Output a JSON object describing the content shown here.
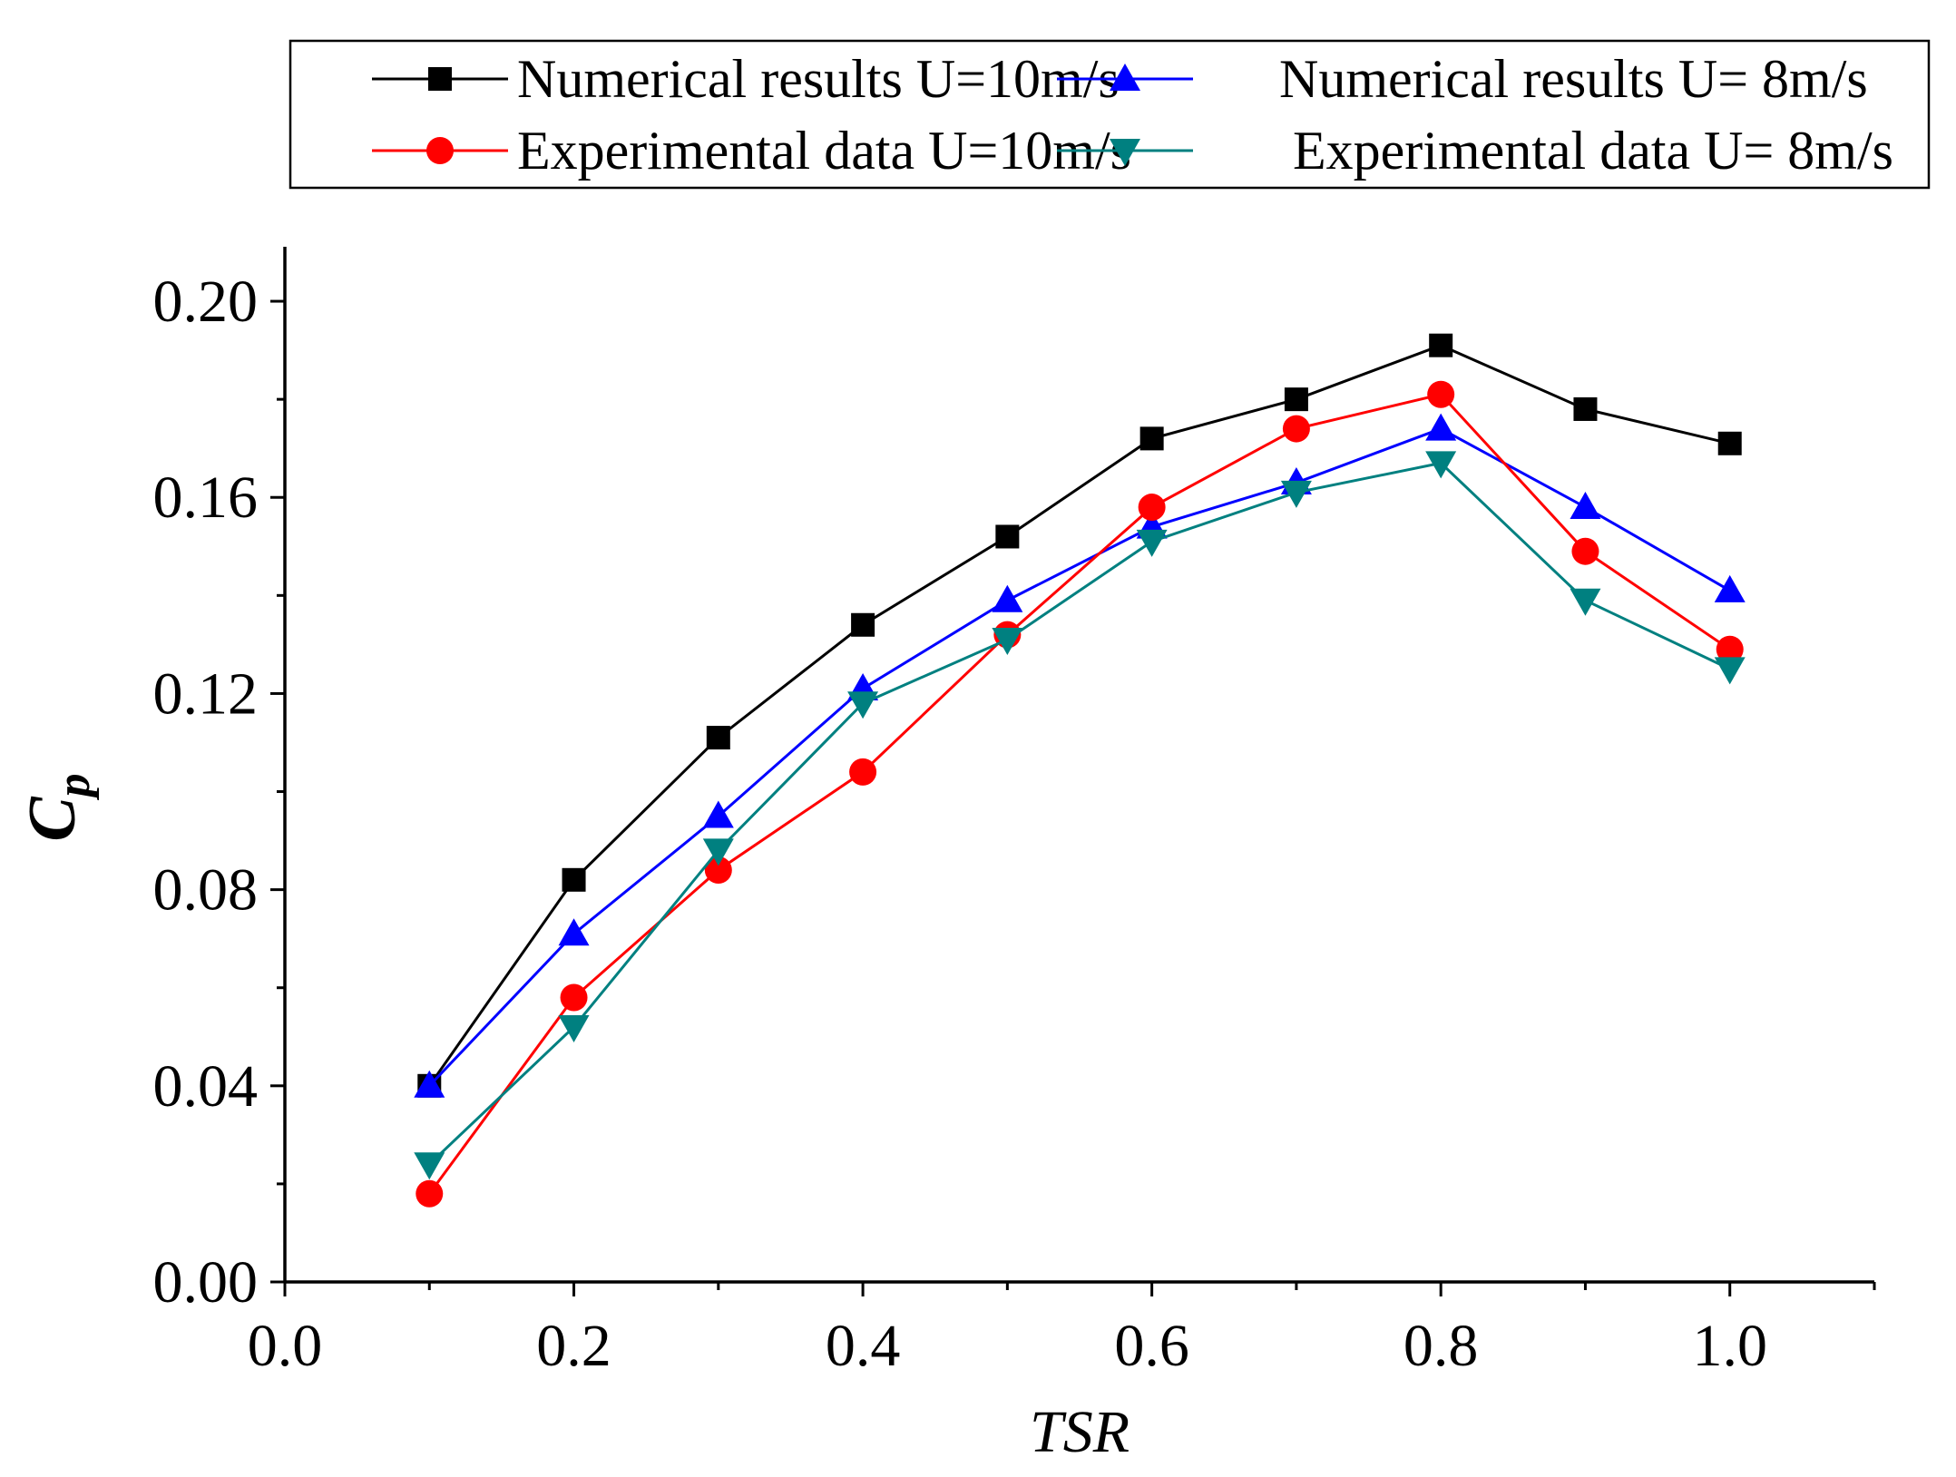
{
  "chart_data": {
    "type": "line",
    "title": "",
    "xlabel": "TSR",
    "ylabel": "C",
    "ylabel_subscript": "p",
    "xlim": [
      0.0,
      1.1
    ],
    "ylim": [
      0.0,
      0.21
    ],
    "xticks": [
      0.0,
      0.2,
      0.4,
      0.6,
      0.8,
      1.0
    ],
    "xtick_labels": [
      "0.0",
      "0.2",
      "0.4",
      "0.6",
      "0.8",
      "1.0"
    ],
    "yticks": [
      0.0,
      0.04,
      0.08,
      0.12,
      0.16,
      0.2
    ],
    "ytick_labels": [
      "0.00",
      "0.04",
      "0.08",
      "0.12",
      "0.16",
      "0.20"
    ],
    "grid": false,
    "legend_position": "top",
    "x": [
      0.1,
      0.2,
      0.3,
      0.4,
      0.5,
      0.6,
      0.7,
      0.8,
      0.9,
      1.0
    ],
    "series": [
      {
        "name": "Numerical results U=10m/s",
        "color": "#000000",
        "marker": "square",
        "values": [
          0.04,
          0.082,
          0.111,
          0.134,
          0.152,
          0.172,
          0.18,
          0.191,
          0.178,
          0.171
        ]
      },
      {
        "name": "Numerical results U= 8m/s",
        "color": "#0000ff",
        "marker": "triangle-up",
        "values": [
          0.04,
          0.071,
          0.095,
          0.121,
          0.139,
          0.154,
          0.163,
          0.174,
          0.158,
          0.141
        ]
      },
      {
        "name": "Experimental data U=10m/s",
        "color": "#ff0000",
        "marker": "circle",
        "values": [
          0.018,
          0.058,
          0.084,
          0.104,
          0.132,
          0.158,
          0.174,
          0.181,
          0.149,
          0.129
        ]
      },
      {
        "name": "Experimental data U= 8m/s",
        "color": "#008080",
        "marker": "triangle-down",
        "values": [
          0.024,
          0.052,
          0.088,
          0.118,
          0.131,
          0.151,
          0.161,
          0.167,
          0.139,
          0.125
        ]
      }
    ]
  }
}
